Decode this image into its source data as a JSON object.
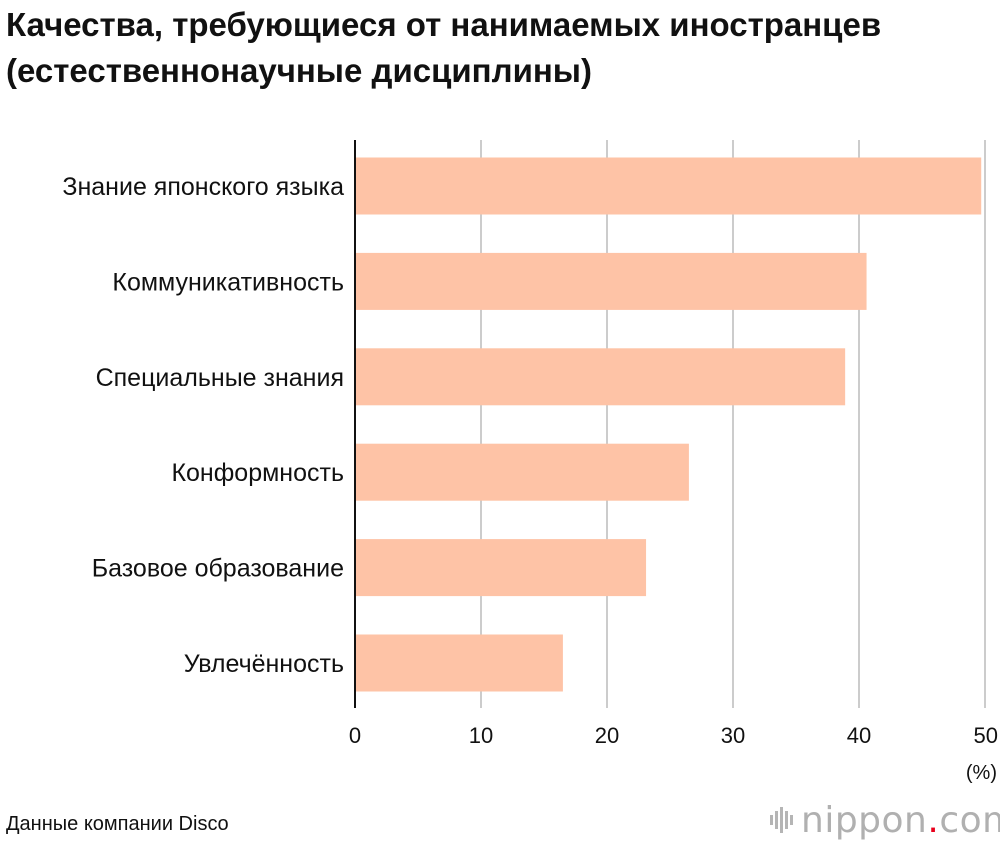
{
  "colors": {
    "bar": "#fec3a6",
    "grid": "#cccccc",
    "axis": "#111111",
    "text": "#111111",
    "logo_dot": "#e8001c",
    "logo_gray": "#b0b0b0"
  },
  "title": "Качества, требующиеся от нанимаемых иностранцев (естественнонаучные дисциплины)",
  "source": "Данные компании Disco",
  "logo": {
    "name": "nippon",
    "dot": ".",
    "tld": "com",
    "icon": "nippon-bars-icon"
  },
  "chart_data": {
    "type": "bar",
    "orientation": "horizontal",
    "categories": [
      "Знание японского языка",
      "Коммуникативность",
      "Специальные знания",
      "Конформность",
      "Базовое образование",
      "Увлечённость"
    ],
    "values": [
      49.7,
      40.6,
      38.9,
      26.5,
      23.1,
      16.5
    ],
    "xlim": [
      0,
      50
    ],
    "xticks": [
      0,
      10,
      20,
      30,
      40,
      50
    ],
    "xunit": "(%)",
    "grid": true,
    "legend": "none"
  }
}
